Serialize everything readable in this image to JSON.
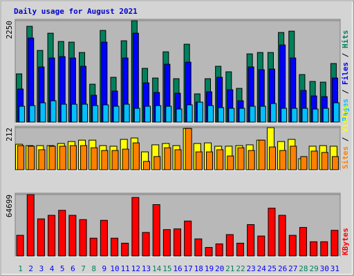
{
  "title": "Daily usage for August 2021",
  "legend_separator": " / ",
  "chart_data": [
    {
      "type": "bar",
      "ylim": [
        0,
        2250
      ],
      "yticks": [
        2250
      ],
      "series": [
        {
          "name": "Hits",
          "color": "#00805c",
          "values": [
            1063,
            2125,
            1586,
            1971,
            1786,
            1771,
            1540,
            832,
            2033,
            986,
            1802,
            2250,
            1186,
            970,
            1555,
            955,
            1725,
            616,
            955,
            1232,
            1109,
            739,
            1509,
            1540,
            1540,
            1987,
            2017,
            1047,
            893,
            878,
            1294
          ]
        },
        {
          "name": "Files",
          "color": "#0000ff",
          "values": [
            724,
            1863,
            1217,
            1417,
            1448,
            1417,
            1232,
            585,
            1771,
            678,
            1417,
            1971,
            862,
            647,
            1278,
            631,
            1324,
            431,
            662,
            986,
            708,
            462,
            1217,
            1155,
            1170,
            1709,
            1417,
            693,
            570,
            554,
            970
          ]
        },
        {
          "name": "Pages",
          "color": "#00c0ff",
          "values": [
            339,
            354,
            416,
            462,
            385,
            385,
            385,
            354,
            370,
            339,
            385,
            293,
            339,
            354,
            339,
            277,
            370,
            431,
            354,
            308,
            293,
            293,
            339,
            339,
            400,
            293,
            293,
            293,
            277,
            293,
            416
          ]
        }
      ]
    },
    {
      "type": "bar",
      "ylim": [
        0,
        212
      ],
      "yticks": [
        212
      ],
      "series": [
        {
          "name": "Visits",
          "color": "#ffff00",
          "values": [
            127,
            120,
            120,
            120,
            131,
            141,
            148,
            148,
            120,
            117,
            152,
            159,
            88,
            124,
            131,
            120,
            208,
            131,
            134,
            117,
            117,
            120,
            124,
            148,
            212,
            141,
            152,
            53,
            117,
            120,
            117
          ]
        },
        {
          "name": "Sites",
          "color": "#ff8000",
          "values": [
            120,
            117,
            99,
            117,
            117,
            120,
            120,
            109,
            95,
            95,
            102,
            134,
            39,
            64,
            109,
            99,
            208,
            88,
            88,
            99,
            67,
            109,
            95,
            148,
            113,
            95,
            117,
            64,
            92,
            85,
            64
          ]
        }
      ]
    },
    {
      "type": "bar",
      "ylim": [
        0,
        64699
      ],
      "yticks": [
        64699
      ],
      "categories": [
        "1",
        "2",
        "3",
        "4",
        "5",
        "6",
        "7",
        "8",
        "9",
        "10",
        "11",
        "12",
        "13",
        "14",
        "15",
        "16",
        "17",
        "18",
        "19",
        "20",
        "21",
        "22",
        "23",
        "24",
        "25",
        "26",
        "27",
        "28",
        "29",
        "30",
        "31"
      ],
      "category_colors": [
        "#00805c",
        "#0000ff",
        "#0000ff",
        "#0000ff",
        "#0000ff",
        "#0000ff",
        "#00805c",
        "#00805c",
        "#0000ff",
        "#0000ff",
        "#0000ff",
        "#0000ff",
        "#0000ff",
        "#00805c",
        "#00805c",
        "#0000ff",
        "#0000ff",
        "#0000ff",
        "#0000ff",
        "#0000ff",
        "#00805c",
        "#00805c",
        "#0000ff",
        "#0000ff",
        "#0000ff",
        "#0000ff",
        "#0000ff",
        "#00805c",
        "#00805c",
        "#0000ff",
        "#0000ff"
      ],
      "series": [
        {
          "name": "KBytes",
          "color": "#ff0000",
          "values": [
            21308,
            64699,
            38811,
            42616,
            47943,
            42616,
            38050,
            18264,
            37289,
            18264,
            12937,
            61641,
            24352,
            54031,
            27396,
            28157,
            36528,
            17503,
            8371,
            12176,
            22069,
            12937,
            32723,
            20547,
            50226,
            42616,
            21308,
            29679,
            14459,
            14459,
            26635
          ]
        }
      ]
    }
  ]
}
